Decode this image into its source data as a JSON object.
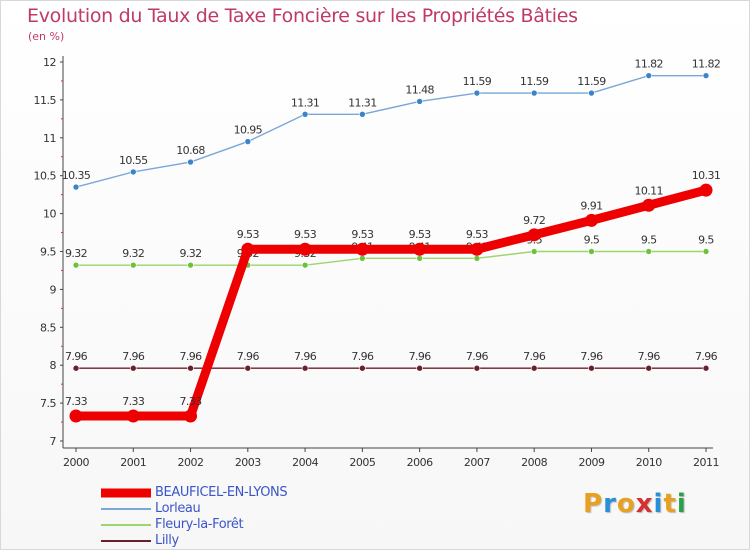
{
  "header": {
    "title": "Evolution du Taux de Taxe Foncière sur les Propriétés Bâties",
    "unit": "(en %)"
  },
  "logo": {
    "letters": [
      "P",
      "r",
      "o",
      "x",
      "i",
      "t",
      "i"
    ],
    "colors": [
      "#e8a020",
      "#2a8fd6",
      "#e8a020",
      "#d63030",
      "#2a8fd6",
      "#e8a020",
      "#2aa04a"
    ]
  },
  "chart_data": {
    "type": "line",
    "x": [
      "2000",
      "2001",
      "2002",
      "2003",
      "2004",
      "2005",
      "2006",
      "2007",
      "2008",
      "2009",
      "2010",
      "2011"
    ],
    "ylim": [
      7,
      12
    ],
    "yticks": [
      "7",
      "7.5",
      "8",
      "8.5",
      "9",
      "9.5",
      "10",
      "10.5",
      "11",
      "11.5",
      "12"
    ],
    "grid": false,
    "legend_position": "bottom-left",
    "series": [
      {
        "name": "BEAUFICEL-EN-LYONS",
        "color": "#ee0000",
        "highlight": true,
        "values": [
          7.33,
          7.33,
          7.33,
          9.53,
          9.53,
          9.53,
          9.53,
          9.53,
          9.72,
          9.91,
          10.11,
          10.31
        ],
        "labels": [
          "7.33",
          "7.33",
          "7.33",
          "9.53",
          "9.53",
          "9.53",
          "9.53",
          "9.53",
          "9.72",
          "9.91",
          "10.11",
          "10.31"
        ]
      },
      {
        "name": "Lorleau",
        "color": "#7aa6d8",
        "marker_color": "#3a84c8",
        "values": [
          10.35,
          10.55,
          10.68,
          10.95,
          11.31,
          11.31,
          11.48,
          11.59,
          11.59,
          11.59,
          11.82,
          11.82
        ],
        "labels": [
          "10.35",
          "10.55",
          "10.68",
          "10.95",
          "11.31",
          "11.31",
          "11.48",
          "11.59",
          "11.59",
          "11.59",
          "11.82",
          "11.82"
        ]
      },
      {
        "name": "Fleury-la-Forêt",
        "color": "#9bd66a",
        "marker_color": "#6cc23a",
        "values": [
          9.32,
          9.32,
          9.32,
          9.32,
          9.32,
          9.41,
          9.41,
          9.41,
          9.5,
          9.5,
          9.5,
          9.5
        ],
        "labels": [
          "9.32",
          "9.32",
          "9.32",
          "9.32",
          "9.32",
          "9.41",
          "9.41",
          "9.41",
          "9.5",
          "9.5",
          "9.5",
          "9.5"
        ]
      },
      {
        "name": "Lilly",
        "color": "#6b1f2a",
        "marker_color": "#6b1f2a",
        "values": [
          7.96,
          7.96,
          7.96,
          7.96,
          7.96,
          7.96,
          7.96,
          7.96,
          7.96,
          7.96,
          7.96,
          7.96
        ],
        "labels": [
          "7.96",
          "7.96",
          "7.96",
          "7.96",
          "7.96",
          "7.96",
          "7.96",
          "7.96",
          "7.96",
          "7.96",
          "7.96",
          "7.96"
        ]
      }
    ]
  }
}
